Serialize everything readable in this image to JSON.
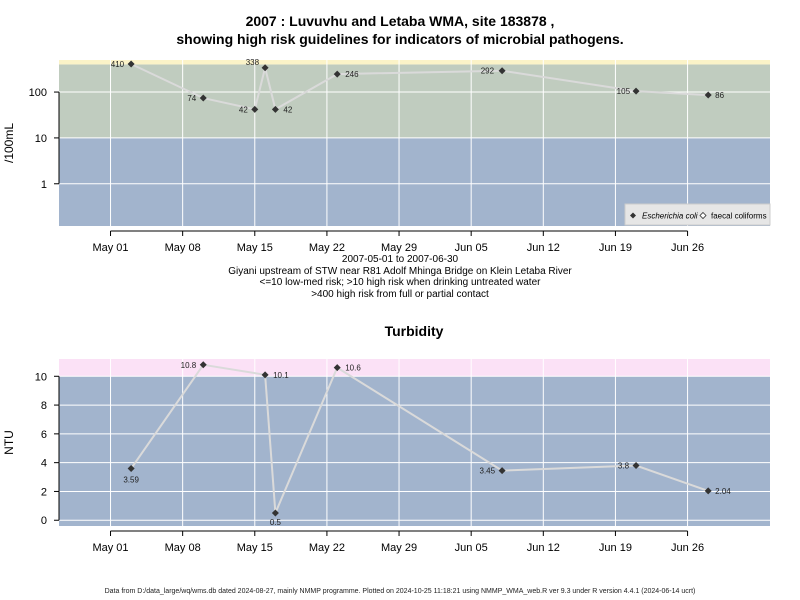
{
  "title_line1": "2007 : Luvuvhu and Letaba WMA, site 183878 ,",
  "title_line2": "showing high risk guidelines for indicators of microbial pathogens.",
  "caption": [
    "2007-05-01 to 2007-06-30",
    "Giyani upstream of STW near R81 Adolf Mhinga Bridge on Klein Letaba River",
    "<=10 low-med risk; >10 high risk when drinking untreated water",
    ">400 high risk from full or partial contact"
  ],
  "footer": "Data from D:/data_large/wq/wms.db dated 2024-08-27, mainly NMMP programme. Plotted on 2024-10-25 11:18:21 using NMMP_WMA_web.R ver 9.3 under R version 4.4.1 (2024-06-14 ucrt)",
  "colors": {
    "band_low": "#a2b4cd",
    "band_mid": "#c0ccbf",
    "band_high": "#fbf3c8",
    "band_turb_high": "#fbe1f6",
    "series_line": "#dadada",
    "point": "#333333",
    "grid": "#ffffff"
  },
  "chart_data": [
    {
      "type": "line",
      "title": "",
      "xlabel": "",
      "ylabel": "/100mL",
      "y_scale": "log10",
      "x_range": [
        "2007-04-26",
        "2007-07-04"
      ],
      "ylim": [
        0.12,
        500
      ],
      "x_ticks": [
        {
          "date": "2007-05-01",
          "label": "May 01"
        },
        {
          "date": "2007-05-08",
          "label": "May 08"
        },
        {
          "date": "2007-05-15",
          "label": "May 15"
        },
        {
          "date": "2007-05-22",
          "label": "May 22"
        },
        {
          "date": "2007-05-29",
          "label": "May 29"
        },
        {
          "date": "2007-06-05",
          "label": "Jun 05"
        },
        {
          "date": "2007-06-12",
          "label": "Jun 12"
        },
        {
          "date": "2007-06-19",
          "label": "Jun 19"
        },
        {
          "date": "2007-06-26",
          "label": "Jun 26"
        }
      ],
      "y_ticks": [
        {
          "value": 1,
          "label": "1"
        },
        {
          "value": 10,
          "label": "10"
        },
        {
          "value": 100,
          "label": "100"
        }
      ],
      "bands": [
        {
          "from": 0.12,
          "to": 10,
          "color": "#a2b4cd"
        },
        {
          "from": 10,
          "to": 400,
          "color": "#c0ccbf"
        },
        {
          "from": 400,
          "to": 500,
          "color": "#fbf3c8"
        }
      ],
      "series": [
        {
          "name": "Escherichia coli",
          "points": [
            {
              "x": "2007-05-03",
              "y": 410,
              "label": "410"
            },
            {
              "x": "2007-05-10",
              "y": 74,
              "label": "74"
            },
            {
              "x": "2007-05-15",
              "y": 42,
              "label": "42"
            },
            {
              "x": "2007-05-16",
              "y": 338,
              "label": "338"
            },
            {
              "x": "2007-05-17",
              "y": 42,
              "label": "42"
            },
            {
              "x": "2007-05-23",
              "y": 246,
              "label": "246"
            },
            {
              "x": "2007-06-08",
              "y": 292,
              "label": "292"
            },
            {
              "x": "2007-06-21",
              "y": 105,
              "label": "105"
            },
            {
              "x": "2007-06-28",
              "y": 86,
              "label": "86"
            }
          ]
        }
      ],
      "legend": {
        "placement": "bottom-right",
        "entries": [
          {
            "label": "Escherichia coli",
            "marker": "filled-diamond"
          },
          {
            "label": "faecal coliforms",
            "marker": "open-diamond"
          }
        ]
      }
    },
    {
      "type": "line",
      "title": "Turbidity",
      "xlabel": "",
      "ylabel": "NTU",
      "x_range": [
        "2007-04-26",
        "2007-07-04"
      ],
      "ylim": [
        -0.4,
        11.2
      ],
      "x_ticks": [
        {
          "date": "2007-05-01",
          "label": "May 01"
        },
        {
          "date": "2007-05-08",
          "label": "May 08"
        },
        {
          "date": "2007-05-15",
          "label": "May 15"
        },
        {
          "date": "2007-05-22",
          "label": "May 22"
        },
        {
          "date": "2007-05-29",
          "label": "May 29"
        },
        {
          "date": "2007-06-05",
          "label": "Jun 05"
        },
        {
          "date": "2007-06-12",
          "label": "Jun 12"
        },
        {
          "date": "2007-06-19",
          "label": "Jun 19"
        },
        {
          "date": "2007-06-26",
          "label": "Jun 26"
        }
      ],
      "y_ticks": [
        {
          "value": 0,
          "label": "0"
        },
        {
          "value": 2,
          "label": "2"
        },
        {
          "value": 4,
          "label": "4"
        },
        {
          "value": 6,
          "label": "6"
        },
        {
          "value": 8,
          "label": "8"
        },
        {
          "value": 10,
          "label": "10"
        }
      ],
      "bands": [
        {
          "from": -0.4,
          "to": 10,
          "color": "#a2b4cd"
        },
        {
          "from": 10,
          "to": 11.2,
          "color": "#fbe1f6"
        }
      ],
      "series": [
        {
          "name": "",
          "points": [
            {
              "x": "2007-05-03",
              "y": 3.59,
              "label": "3.59"
            },
            {
              "x": "2007-05-10",
              "y": 10.8,
              "label": "10.8"
            },
            {
              "x": "2007-05-16",
              "y": 10.1,
              "label": "10.1"
            },
            {
              "x": "2007-05-17",
              "y": 0.5,
              "label": "0.5"
            },
            {
              "x": "2007-05-23",
              "y": 10.6,
              "label": "10.6"
            },
            {
              "x": "2007-06-08",
              "y": 3.45,
              "label": "3.45"
            },
            {
              "x": "2007-06-21",
              "y": 3.8,
              "label": "3.8"
            },
            {
              "x": "2007-06-28",
              "y": 2.04,
              "label": "2.04"
            }
          ]
        }
      ]
    }
  ]
}
